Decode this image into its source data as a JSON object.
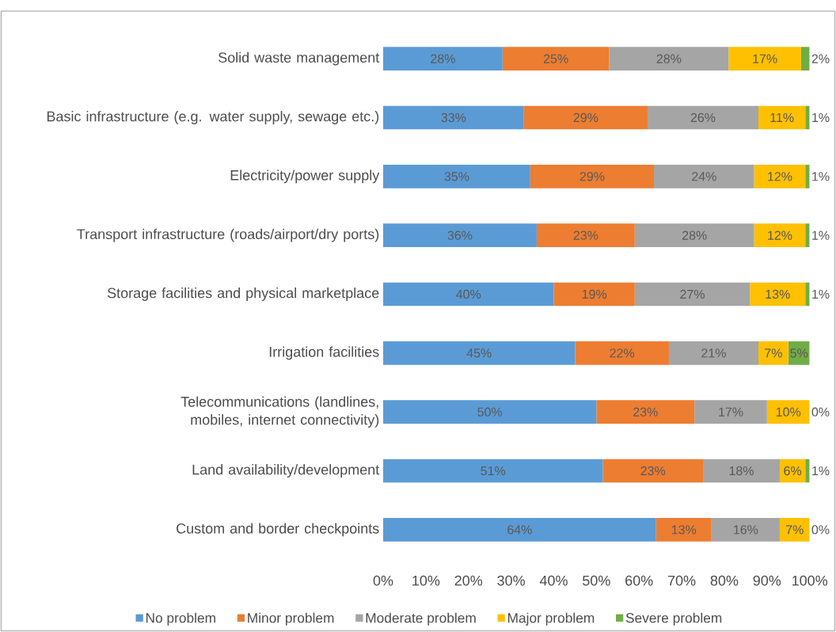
{
  "chart_data": {
    "type": "bar",
    "orientation": "horizontal",
    "stacked": true,
    "legend": "bottom",
    "categories": [
      "Solid waste management",
      "Basic infrastructure (e.g. water supply, sewage etc.)",
      "Electricity/power supply",
      "Transport infrastructure (roads/airport/dry ports)",
      "Storage facilities and physical marketplace",
      "Irrigation facilities",
      "Telecommunications (landlines, mobiles, internet connectivity)",
      "Land availability/development",
      "Custom and border checkpoints"
    ],
    "series": [
      {
        "name": "No problem",
        "color": "#5b9bd5",
        "values": [
          28,
          33,
          34.5,
          36,
          40,
          45,
          50,
          51.5,
          64
        ],
        "value_labels": [
          "28%",
          "33%",
          "35%",
          "36%",
          "40%",
          "45%",
          "50%",
          "51%",
          "64%"
        ]
      },
      {
        "name": "Minor problem",
        "color": "#ed7d31",
        "values": [
          25,
          29,
          29,
          23,
          19,
          22,
          23,
          23.5,
          13
        ],
        "value_labels": [
          "25%",
          "29%",
          "29%",
          "23%",
          "19%",
          "22%",
          "23%",
          "23%",
          "13%"
        ]
      },
      {
        "name": "Moderate problem",
        "color": "#a5a5a5",
        "values": [
          28,
          26,
          23.5,
          28,
          27,
          21,
          17,
          18,
          16
        ],
        "value_labels": [
          "28%",
          "26%",
          "24%",
          "28%",
          "27%",
          "21%",
          "17%",
          "18%",
          "16%"
        ]
      },
      {
        "name": "Major problem",
        "color": "#ffc000",
        "values": [
          17,
          11,
          12,
          12,
          13,
          7,
          10,
          6,
          7
        ],
        "value_labels": [
          "17%",
          "11%",
          "12%",
          "12%",
          "13%",
          "7%",
          "10%",
          "6%",
          "7%"
        ]
      },
      {
        "name": "Severe problem",
        "color": "#70ad47",
        "values": [
          2,
          1,
          1,
          1,
          1,
          5,
          0,
          1,
          0
        ],
        "value_labels": [
          "2%",
          "1%",
          "1%",
          "1%",
          "1%",
          "5%",
          "0%",
          "1%",
          "0%"
        ]
      }
    ],
    "xlim": [
      0,
      100
    ],
    "xticks": [
      {
        "value": 0,
        "label": "0%"
      },
      {
        "value": 10,
        "label": "10%"
      },
      {
        "value": 20,
        "label": "20%"
      },
      {
        "value": 30,
        "label": "30%"
      },
      {
        "value": 40,
        "label": "40%"
      },
      {
        "value": 50,
        "label": "50%"
      },
      {
        "value": 60,
        "label": "60%"
      },
      {
        "value": 70,
        "label": "70%"
      },
      {
        "value": 80,
        "label": "80%"
      },
      {
        "value": 90,
        "label": "90%"
      },
      {
        "value": 100,
        "label": "100%"
      }
    ]
  }
}
